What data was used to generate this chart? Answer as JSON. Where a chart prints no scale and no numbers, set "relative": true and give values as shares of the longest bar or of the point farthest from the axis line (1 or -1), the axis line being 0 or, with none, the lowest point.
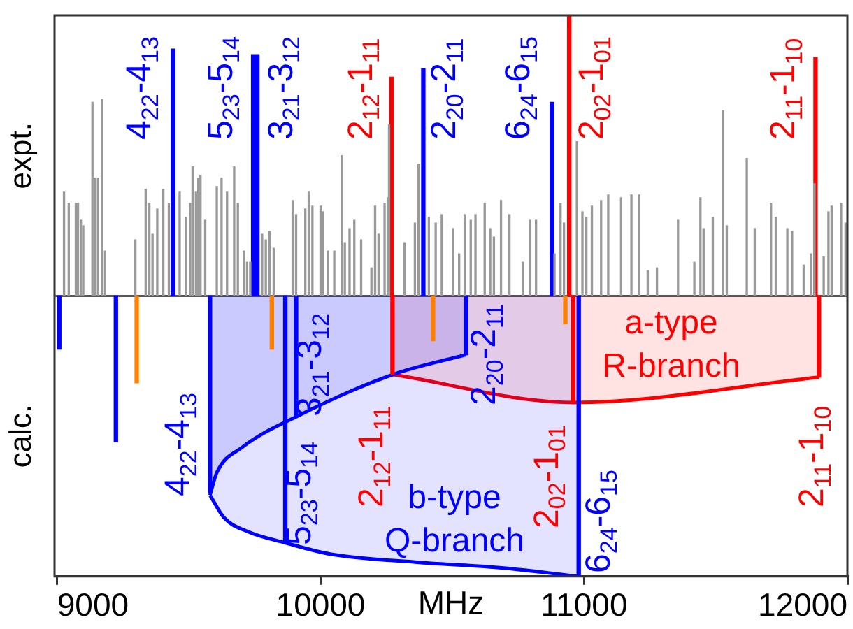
{
  "chart_data": {
    "type": "bar",
    "relative": true,
    "xlabel": "MHz",
    "xlim": [
      8990,
      12000
    ],
    "xticks": [
      9000,
      10000,
      11000,
      12000
    ],
    "grid": false,
    "legend": false,
    "series": [
      {
        "color": "#999999",
        "x": [
          9026,
          9044,
          9071,
          9079,
          9090,
          9099,
          9134,
          9143,
          9155,
          9170,
          9182,
          9297,
          9336,
          9350,
          9362,
          9380,
          9403,
          9424,
          9465,
          9488,
          9505,
          9514,
          9527,
          9536,
          9544,
          9562,
          9606,
          9624,
          9645,
          9672,
          9686,
          9709,
          9721,
          9733,
          9778,
          9792,
          9806,
          9822,
          9894,
          9907,
          9942,
          9955,
          9969,
          10000,
          10008,
          10027,
          10052,
          10080,
          10092,
          10110,
          10128,
          10154,
          10193,
          10207,
          10220,
          10243,
          10255,
          10260,
          10319,
          10358,
          10372,
          10411,
          10437,
          10460,
          10503,
          10526,
          10547,
          10570,
          10588,
          10623,
          10644,
          10658,
          10685,
          10717,
          10768,
          10796,
          10818,
          10888,
          10911,
          10924,
          10973,
          10994,
          11009,
          11030,
          11065,
          11092,
          11141,
          11180,
          11210,
          11242,
          11277,
          11357,
          11419,
          11442,
          11454,
          11489,
          11528,
          11542,
          11618,
          11648,
          11710,
          11728,
          11772,
          11790,
          11834,
          11861,
          11875,
          11910,
          11928,
          11940,
          11976,
          11993
        ],
        "values": [
          0.37,
          0.33,
          0.33,
          0.33,
          0.27,
          0.25,
          0.69,
          0.42,
          0.42,
          0.7,
          0.16,
          0.2,
          0.38,
          0.33,
          0.22,
          0.31,
          0.38,
          0.33,
          0.37,
          0.28,
          0.33,
          0.46,
          0.37,
          0.42,
          0.43,
          0.27,
          0.39,
          0.42,
          0.37,
          0.46,
          0.33,
          0.16,
          0.12,
          0.12,
          0.22,
          0.2,
          0.23,
          0.17,
          0.34,
          0.29,
          0.31,
          0.37,
          0.32,
          0.32,
          0.3,
          0.16,
          0.16,
          0.5,
          0.19,
          0.24,
          0.27,
          0.2,
          0.1,
          0.32,
          0.22,
          0.33,
          0.35,
          0.61,
          0.19,
          0.26,
          0.47,
          0.28,
          0.26,
          0.29,
          0.24,
          0.15,
          0.29,
          0.27,
          0.29,
          0.33,
          0.24,
          0.21,
          0.34,
          0.29,
          0.12,
          0.27,
          0.27,
          0.15,
          0.33,
          0.26,
          0.55,
          0.3,
          0.28,
          0.32,
          0.34,
          0.36,
          0.35,
          0.36,
          0.36,
          0.09,
          0.1,
          0.27,
          0.12,
          0.35,
          0.24,
          0.28,
          0.66,
          0.25,
          0.49,
          0.24,
          0.33,
          0.28,
          0.24,
          0.23,
          0.11,
          0.15,
          0.4,
          0.14,
          0.3,
          0.32,
          0.33,
          0.26
        ]
      },
      {
        "type": "area",
        "name": "b-type Q-branch",
        "color": "#0000ff",
        "x": [
          9580,
          9633,
          9723,
          9866,
          10036,
          10376,
          10694,
          10980
        ],
        "values": [
          -0.71,
          -0.79,
          -0.84,
          -0.88,
          -0.92,
          -0.95,
          -0.97,
          -1.0
        ]
      },
      {
        "type": "area",
        "color": "#0000ff",
        "x": [
          9580,
          9606,
          9702,
          9909,
          10275,
          10551
        ],
        "values": [
          -0.71,
          -0.63,
          -0.54,
          -0.43,
          -0.28,
          -0.21
        ]
      },
      {
        "type": "area",
        "name": "a-type R-branch",
        "color": "#ff0000",
        "x": [
          10273,
          10959,
          11892
        ],
        "values": [
          -0.28,
          -0.38,
          -0.29
        ]
      },
      {
        "name": "4$_{22}$-4$_{13}$",
        "color": "#0000ff",
        "x": [
          9440,
          9580
        ],
        "values": [
          0.88,
          -0.7
        ]
      },
      {
        "name": "5$_{23}$-5$_{14}$",
        "color": "#0000ff",
        "x": [
          9744,
          9866
        ],
        "values": [
          0.86,
          -0.88
        ]
      },
      {
        "name": "3$_{21}$-3$_{12}$",
        "color": "#0000ff",
        "x": [
          9760,
          9907
        ],
        "values": [
          0.86,
          -0.43
        ]
      },
      {
        "name": "2$_{12}$-1$_{11}$",
        "color": "#ff0000",
        "x": [
          10269,
          10273
        ],
        "values": [
          0.78,
          -0.28
        ]
      },
      {
        "name": "2$_{20}$-2$_{11}$",
        "color": "#0000ff",
        "x": [
          10390,
          10552
        ],
        "values": [
          0.81,
          -0.21
        ]
      },
      {
        "name": "6$_{24}$-6$_{15}$",
        "color": "#0000ff",
        "x": [
          10878,
          10980
        ],
        "values": [
          0.69,
          -1.0
        ]
      },
      {
        "name": "2$_{02}$-1$_{01}$",
        "color": "#ff0000",
        "x": [
          10944,
          10959
        ],
        "values": [
          1.0,
          -0.38
        ]
      },
      {
        "name": "2$_{11}$-1$_{10}$",
        "color": "#ff0000",
        "x": [
          11879,
          11892
        ],
        "values": [
          0.85,
          -0.29
        ]
      },
      {
        "color": "#0000ff",
        "x": [
          9008,
          9223
        ],
        "values": [
          -0.19,
          -0.52
        ]
      },
      {
        "color": "#ff8000",
        "x": [
          9302,
          9815,
          10427,
          10929
        ],
        "values": [
          -0.31,
          -0.19,
          -0.16,
          -0.1
        ]
      }
    ],
    "annotations": [
      "expt.",
      "calc."
    ]
  }
}
